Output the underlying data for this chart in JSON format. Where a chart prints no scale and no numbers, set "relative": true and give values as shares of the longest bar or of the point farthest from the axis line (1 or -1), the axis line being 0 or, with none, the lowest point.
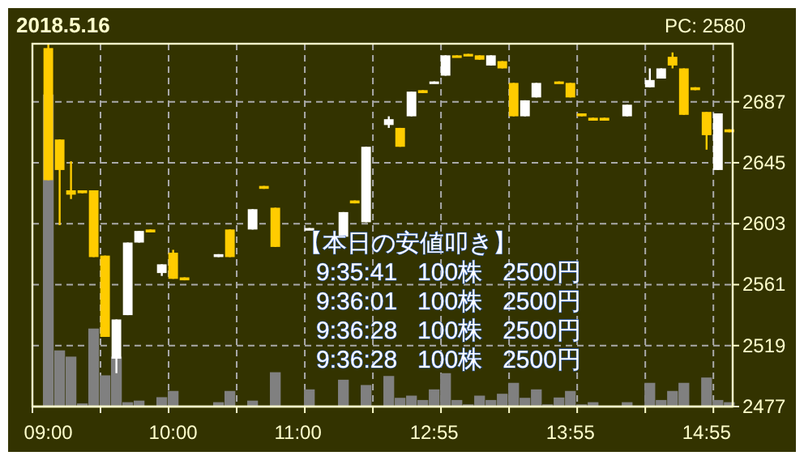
{
  "chart_data": [
    {
      "type": "candlestick",
      "title": "2018.5.16",
      "subtitle": "PC: 2580",
      "annotations": [
        "【本日の安値叩き】",
        "9:35:41   100株   2500円",
        "9:36:01   100株   2500円",
        "9:36:28   100株   2500円",
        "9:36:28   100株   2500円"
      ],
      "categories": [
        "09:00",
        null,
        null,
        null,
        null,
        null,
        null,
        null,
        null,
        null,
        null,
        "10:00",
        null,
        null,
        null,
        null,
        null,
        null,
        null,
        null,
        null,
        null,
        "11:00",
        null,
        null,
        null,
        null,
        null,
        null,
        null,
        null,
        null,
        null,
        null,
        "12:55",
        null,
        null,
        null,
        null,
        null,
        null,
        null,
        null,
        null,
        null,
        null,
        "13:55",
        null,
        null,
        null,
        null,
        null,
        null,
        null,
        null,
        null,
        null,
        null,
        "14:55",
        null,
        null
      ],
      "ohlc": [
        [
          2724,
          2727,
          2633,
          2633
        ],
        [
          2661,
          2661,
          2602,
          2640
        ],
        [
          2626,
          2646,
          2620,
          2623
        ],
        [
          2626,
          2626,
          2624,
          2624
        ],
        [
          2626,
          2626,
          2580,
          2580
        ],
        [
          2581,
          2581,
          2525,
          2525
        ],
        [
          2510,
          2537,
          2500,
          2537
        ],
        [
          2540,
          2590,
          2540,
          2590
        ],
        [
          2590,
          2598,
          2590,
          2598
        ],
        [
          2599,
          2599,
          2597,
          2597
        ],
        [
          2569,
          2575,
          2567,
          2575
        ],
        [
          2583,
          2585,
          2565,
          2565
        ],
        [
          2566,
          2566,
          2564,
          2564
        ],
        null,
        null,
        [
          2580,
          2582,
          2580,
          2582
        ],
        [
          2599,
          2599,
          2580,
          2580
        ],
        null,
        [
          2599,
          2613,
          2599,
          2613
        ],
        [
          2629,
          2629,
          2627,
          2627
        ],
        [
          2614,
          2614,
          2587,
          2587
        ],
        null,
        null,
        [
          2599,
          2600,
          2599,
          2600
        ],
        null,
        null,
        [
          2594,
          2611,
          2594,
          2611
        ],
        [
          2619,
          2619,
          2617,
          2617
        ],
        [
          2604,
          2656,
          2604,
          2656
        ],
        null,
        [
          2671,
          2677,
          2669,
          2675
        ],
        [
          2669,
          2669,
          2656,
          2656
        ],
        [
          2677,
          2694,
          2677,
          2694
        ],
        [
          2695,
          2695,
          2693,
          2693
        ],
        [
          2700,
          2701,
          2700,
          2701
        ],
        [
          2705,
          2719,
          2705,
          2719
        ],
        [
          2719,
          2719,
          2718,
          2718
        ],
        [
          2720,
          2720,
          2719,
          2719
        ],
        [
          2719,
          2719,
          2716,
          2716
        ],
        [
          2712,
          2719,
          2712,
          2719
        ],
        [
          2715,
          2715,
          2710,
          2710
        ],
        [
          2700,
          2700,
          2677,
          2677
        ],
        [
          2677,
          2688,
          2677,
          2688
        ],
        [
          2690,
          2700,
          2690,
          2700
        ],
        null,
        [
          2701,
          2701,
          2700,
          2700
        ],
        [
          2700,
          2700,
          2690,
          2690
        ],
        [
          2679,
          2679,
          2677,
          2677
        ],
        [
          2676,
          2676,
          2674,
          2674
        ],
        [
          2676,
          2676,
          2674,
          2674
        ],
        null,
        [
          2677,
          2685,
          2677,
          2685
        ],
        null,
        [
          2697,
          2710,
          2697,
          2702
        ],
        [
          2703,
          2710,
          2703,
          2710
        ],
        [
          2718,
          2721,
          2710,
          2712
        ],
        [
          2710,
          2710,
          2678,
          2678
        ],
        [
          2697,
          2697,
          2695,
          2695
        ],
        [
          2680,
          2680,
          2654,
          2664
        ],
        [
          2640,
          2679,
          2640,
          2679
        ],
        [
          2668,
          2668,
          2666,
          2666
        ]
      ],
      "colors": [
        "#ffcc00",
        "#ffcc00",
        "#ffcc00",
        "#ffcc00",
        "#ffcc00",
        "#ffcc00",
        "#ffffff",
        "#ffffff",
        "#ffffff",
        "#ffcc00",
        "#ffffff",
        "#ffcc00",
        "#ffcc00",
        null,
        null,
        "#ffffff",
        "#ffcc00",
        null,
        "#ffffff",
        "#ffcc00",
        "#ffcc00",
        null,
        null,
        "#ffffff",
        null,
        null,
        "#ffffff",
        "#ffcc00",
        "#ffffff",
        null,
        "#ffffff",
        "#ffcc00",
        "#ffffff",
        "#ffcc00",
        "#ffffff",
        "#ffffff",
        "#ffcc00",
        "#ffcc00",
        "#ffcc00",
        "#ffffff",
        "#ffcc00",
        "#ffcc00",
        "#ffffff",
        "#ffffff",
        null,
        "#ffcc00",
        "#ffcc00",
        "#ffcc00",
        "#ffcc00",
        "#ffcc00",
        null,
        "#ffffff",
        null,
        "#ffffff",
        "#ffffff",
        "#ffcc00",
        "#ffcc00",
        "#ffcc00",
        "#ffcc00",
        "#ffffff",
        "#ffcc00"
      ],
      "ylim": [
        2477,
        2727
      ],
      "yticks": [
        2477,
        2519,
        2561,
        2603,
        2645,
        2687
      ],
      "grid": true
    },
    {
      "type": "bar",
      "relative": true,
      "color": "#808080",
      "categories": [
        null,
        null,
        null,
        null,
        null,
        null,
        null,
        null,
        null,
        null,
        null,
        null,
        null,
        null,
        null,
        null,
        null,
        null,
        null,
        null,
        null,
        null,
        null,
        null,
        null,
        null,
        null,
        null,
        null,
        null,
        null,
        null,
        null,
        null,
        null,
        null,
        null,
        null,
        null,
        null,
        null,
        null,
        null,
        null,
        null,
        null,
        null,
        null,
        null,
        null,
        null,
        null,
        null,
        null,
        null,
        null,
        null,
        null,
        null,
        null,
        null
      ],
      "values": [
        1,
        0.18,
        0.16,
        0.01,
        0.25,
        0.1,
        0.16,
        0.014,
        0.019,
        null,
        0.03,
        0.05,
        null,
        null,
        null,
        0.014,
        0.05,
        null,
        0.019,
        null,
        0.11,
        null,
        null,
        0.055,
        null,
        null,
        0.086,
        null,
        0.069,
        null,
        0.098,
        0.028,
        0.035,
        0.021,
        0.055,
        0.107,
        0.021,
        0.007,
        0.035,
        0.021,
        0.041,
        0.076,
        0.028,
        0.055,
        0.007,
        0.029,
        0.05,
        0.007,
        0.014,
        null,
        null,
        0.014,
        null,
        0.076,
        0.021,
        0.05,
        0.076,
        null,
        0.093,
        0.021,
        0.014
      ]
    }
  ]
}
